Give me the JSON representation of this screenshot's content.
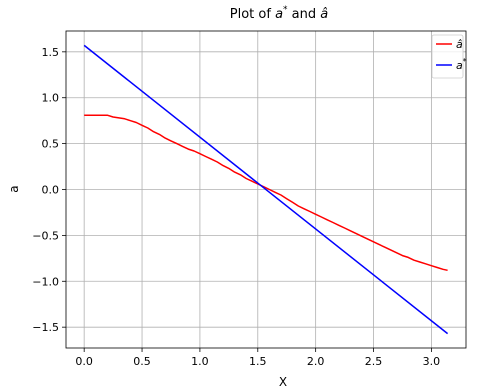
{
  "chart_data": {
    "type": "line",
    "title": "Plot of a* and â",
    "xlabel": "X",
    "ylabel": "a",
    "xlim": [
      -0.157,
      3.299
    ],
    "ylim": [
      -1.727,
      1.727
    ],
    "grid": true,
    "legend_position": "top-right",
    "x_ticks": [
      0.0,
      0.5,
      1.0,
      1.5,
      2.0,
      2.5,
      3.0
    ],
    "x_tick_labels": [
      "0.0",
      "0.5",
      "1.0",
      "1.5",
      "2.0",
      "2.5",
      "3.0"
    ],
    "y_ticks": [
      -1.5,
      -1.0,
      -0.5,
      0.0,
      0.5,
      1.0,
      1.5
    ],
    "y_tick_labels": [
      "−1.5",
      "−1.0",
      "−0.5",
      "0.0",
      "0.5",
      "1.0",
      "1.5"
    ],
    "series": [
      {
        "name": "â",
        "color": "#ff0000",
        "x": [
          0.0,
          0.05,
          0.1,
          0.15,
          0.2,
          0.25,
          0.3,
          0.35,
          0.4,
          0.45,
          0.5,
          0.55,
          0.6,
          0.65,
          0.7,
          0.75,
          0.8,
          0.85,
          0.9,
          0.95,
          1.0,
          1.05,
          1.1,
          1.15,
          1.2,
          1.25,
          1.3,
          1.35,
          1.4,
          1.45,
          1.5,
          1.55,
          1.6,
          1.65,
          1.7,
          1.75,
          1.8,
          1.85,
          1.9,
          1.95,
          2.0,
          2.05,
          2.1,
          2.15,
          2.2,
          2.25,
          2.3,
          2.35,
          2.4,
          2.45,
          2.5,
          2.55,
          2.6,
          2.65,
          2.7,
          2.75,
          2.8,
          2.85,
          2.9,
          2.95,
          3.0,
          3.05,
          3.1,
          3.14
        ],
        "y": [
          0.81,
          0.81,
          0.81,
          0.81,
          0.81,
          0.79,
          0.78,
          0.77,
          0.75,
          0.73,
          0.7,
          0.67,
          0.63,
          0.6,
          0.56,
          0.53,
          0.5,
          0.47,
          0.44,
          0.42,
          0.39,
          0.36,
          0.33,
          0.3,
          0.26,
          0.23,
          0.19,
          0.16,
          0.12,
          0.09,
          0.06,
          0.03,
          0.0,
          -0.03,
          -0.06,
          -0.1,
          -0.14,
          -0.18,
          -0.21,
          -0.24,
          -0.27,
          -0.3,
          -0.33,
          -0.36,
          -0.39,
          -0.42,
          -0.45,
          -0.48,
          -0.51,
          -0.54,
          -0.57,
          -0.6,
          -0.63,
          -0.66,
          -0.69,
          -0.72,
          -0.74,
          -0.77,
          -0.79,
          -0.81,
          -0.83,
          -0.85,
          -0.87,
          -0.88
        ]
      },
      {
        "name": "a*",
        "color": "#0000ff",
        "x": [
          0.0,
          3.14
        ],
        "y": [
          1.57,
          -1.57
        ]
      }
    ]
  }
}
